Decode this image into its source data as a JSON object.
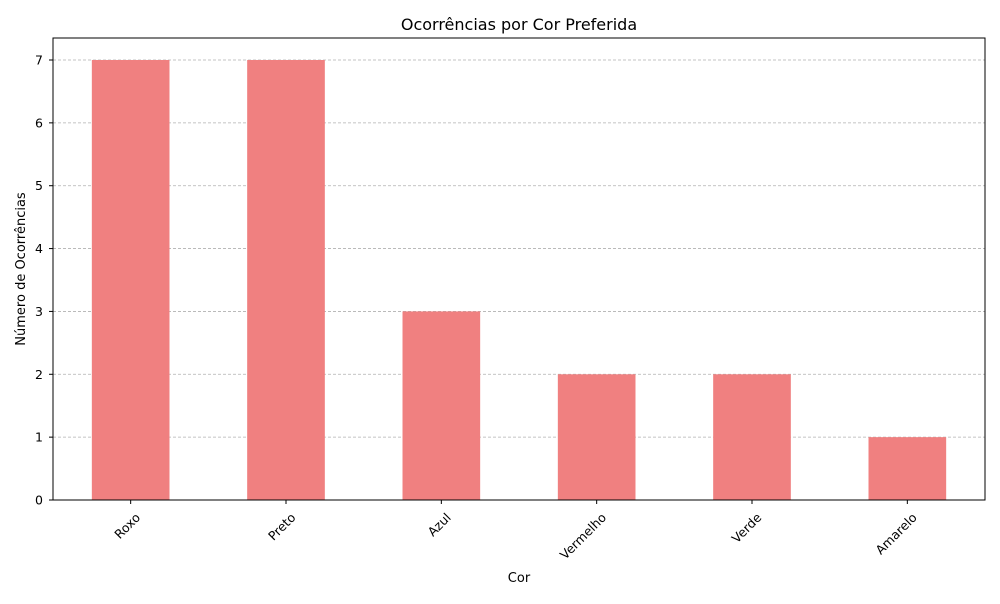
{
  "chart_data": {
    "type": "bar",
    "title": "Ocorrências por Cor Preferida",
    "xlabel": "Cor",
    "ylabel": "Número de Ocorrências",
    "categories": [
      "Roxo",
      "Preto",
      "Azul",
      "Vermelho",
      "Verde",
      "Amarelo"
    ],
    "values": [
      7,
      7,
      3,
      2,
      2,
      1
    ],
    "ylim": [
      0,
      7.35
    ],
    "yticks": [
      0,
      1,
      2,
      3,
      4,
      5,
      6,
      7
    ],
    "grid": "y-dashed",
    "legend": "none",
    "colors": {
      "bar": "#f08080",
      "grid": "#b0b0b0",
      "axis": "#000000"
    }
  }
}
